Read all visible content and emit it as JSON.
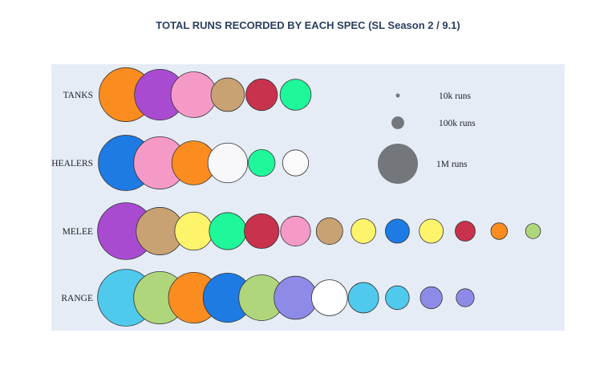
{
  "chart_data": {
    "type": "scatter",
    "title": "TOTAL RUNS RECORDED BY EACH SPEC (SL Season 2 / 9.1)",
    "rows": [
      {
        "label": "TANKS",
        "points": [
          {
            "runs": 1800000,
            "color": "#fb8c1f"
          },
          {
            "runs": 1600000,
            "color": "#a94bd1"
          },
          {
            "runs": 1300000,
            "color": "#f59ac7"
          },
          {
            "runs": 700000,
            "color": "#c9a274"
          },
          {
            "runs": 620000,
            "color": "#c8324c"
          },
          {
            "runs": 600000,
            "color": "#1ff79b"
          }
        ]
      },
      {
        "label": "HEALERS",
        "points": [
          {
            "runs": 1900000,
            "color": "#1e7be3"
          },
          {
            "runs": 1700000,
            "color": "#f59ac7"
          },
          {
            "runs": 1200000,
            "color": "#fb8c1f"
          },
          {
            "runs": 980000,
            "color": "#f8f8fb"
          },
          {
            "runs": 450000,
            "color": "#1ff79b"
          },
          {
            "runs": 420000,
            "color": "#fafafa"
          }
        ]
      },
      {
        "label": "MELEE",
        "points": [
          {
            "runs": 2000000,
            "color": "#a94bd1"
          },
          {
            "runs": 1400000,
            "color": "#c9a274"
          },
          {
            "runs": 900000,
            "color": "#fdf46c"
          },
          {
            "runs": 850000,
            "color": "#1ff79b"
          },
          {
            "runs": 750000,
            "color": "#c8324c"
          },
          {
            "runs": 560000,
            "color": "#f59ac7"
          },
          {
            "runs": 440000,
            "color": "#c9a274"
          },
          {
            "runs": 380000,
            "color": "#fdf46c"
          },
          {
            "runs": 360000,
            "color": "#1e7be3"
          },
          {
            "runs": 360000,
            "color": "#fdf46c"
          },
          {
            "runs": 250000,
            "color": "#c8324c"
          },
          {
            "runs": 170000,
            "color": "#fb8c1f"
          },
          {
            "runs": 140000,
            "color": "#b0d67c"
          }
        ]
      },
      {
        "label": "RANGE",
        "points": [
          {
            "runs": 2000000,
            "color": "#4fc9ec"
          },
          {
            "runs": 1700000,
            "color": "#b0d67c"
          },
          {
            "runs": 1600000,
            "color": "#fb8c1f"
          },
          {
            "runs": 1500000,
            "color": "#1e7be3"
          },
          {
            "runs": 1300000,
            "color": "#b0d67c"
          },
          {
            "runs": 1150000,
            "color": "#8e8be8"
          },
          {
            "runs": 800000,
            "color": "#ffffff"
          },
          {
            "runs": 580000,
            "color": "#4fc9ec"
          },
          {
            "runs": 350000,
            "color": "#4fc9ec"
          },
          {
            "runs": 300000,
            "color": "#8e8be8"
          },
          {
            "runs": 200000,
            "color": "#8e8be8"
          }
        ]
      }
    ],
    "legend": {
      "placement": "top-right",
      "color": "#73767a",
      "entries": [
        {
          "runs": 10000,
          "label": "10k runs"
        },
        {
          "runs": 100000,
          "label": "100k runs"
        },
        {
          "runs": 1000000,
          "label": "1M runs"
        }
      ]
    },
    "colors": {
      "plot_background": "#e5ecf6",
      "title": "#2a3f5f",
      "marker_outline": "#333333"
    }
  }
}
